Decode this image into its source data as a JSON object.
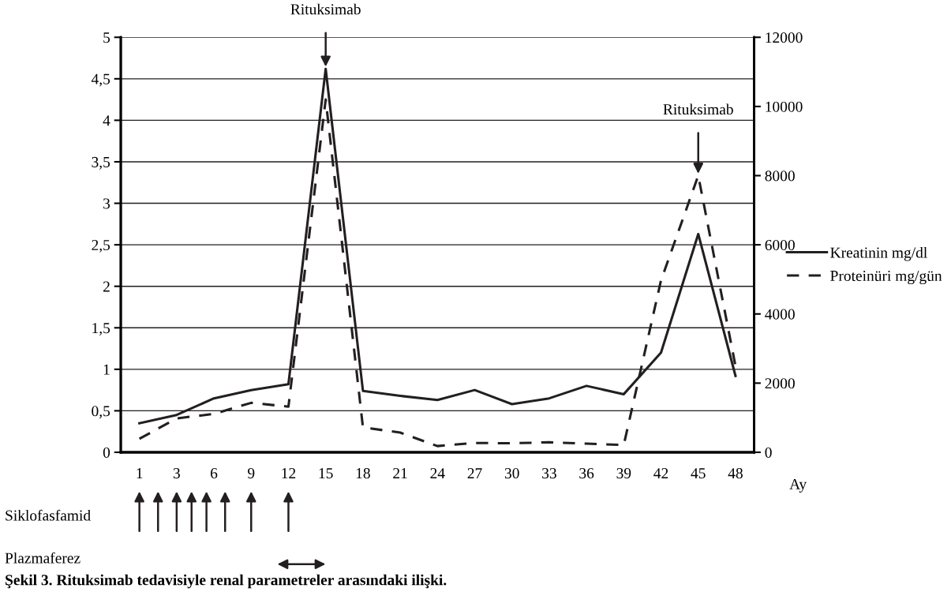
{
  "chart_data": {
    "type": "line",
    "title": "Şekil 3. Rituksimab tedavisiyle renal parametreler arasındaki ilişki.",
    "xlabel": "Ay",
    "categories": [
      "1",
      "3",
      "6",
      "9",
      "12",
      "15",
      "18",
      "21",
      "24",
      "27",
      "30",
      "33",
      "36",
      "39",
      "42",
      "45",
      "48"
    ],
    "series": [
      {
        "name": "Kreatinin mg/dl",
        "color": "#231f20",
        "line_style": "solid",
        "values": [
          0.35,
          0.45,
          0.65,
          0.75,
          0.82,
          4.62,
          0.74,
          0.68,
          0.63,
          0.75,
          0.58,
          0.65,
          0.8,
          0.7,
          1.2,
          2.63,
          0.92
        ]
      },
      {
        "name": "Proteinüri mg/gün",
        "color": "#231f20",
        "line_style": "dashed",
        "axis": "y2",
        "values": [
          390,
          980,
          1110,
          1430,
          1320,
          10200,
          720,
          570,
          180,
          270,
          260,
          290,
          250,
          210,
          4970,
          8000,
          2490
        ]
      }
    ],
    "ylim": [
      0,
      5
    ],
    "yticks": [
      0,
      {
        "value": 0.5,
        "label": "0,5"
      },
      1,
      {
        "value": 1.5,
        "label": "1,5"
      },
      2,
      {
        "value": 2.5,
        "label": "2,5"
      },
      3,
      {
        "value": 3.5,
        "label": "3,5"
      },
      4,
      {
        "value": 4.5,
        "label": "4,5"
      },
      5
    ],
    "y2lim": [
      0,
      12000
    ],
    "y2ticks": [
      0,
      2000,
      4000,
      6000,
      8000,
      10000,
      12000
    ],
    "grid": "y",
    "legend": "right",
    "marker": "none",
    "annotations": [
      {
        "text": "Rituksimab",
        "x": "15",
        "y": 4.62
      },
      {
        "text": "Rituksimab",
        "x": "45",
        "y": 3.33
      },
      "Siklofasfamid",
      "Plazmaferez"
    ]
  }
}
